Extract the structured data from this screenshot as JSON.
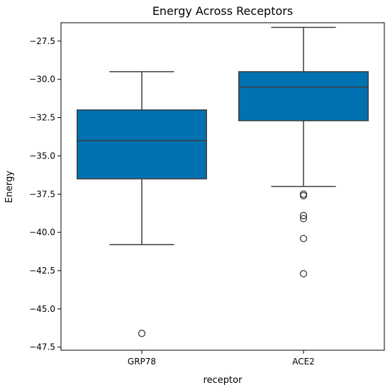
{
  "chart_data": {
    "type": "box",
    "title": "Energy Across Receptors",
    "xlabel": "receptor",
    "ylabel": "Energy",
    "ylim": [
      -47.7,
      -26.3
    ],
    "yticks": [
      -27.5,
      -30.0,
      -32.5,
      -35.0,
      -37.5,
      -40.0,
      -42.5,
      -45.0,
      -47.5
    ],
    "ytick_labels": [
      "−27.5",
      "−30.0",
      "−32.5",
      "−35.0",
      "−37.5",
      "−40.0",
      "−42.5",
      "−45.0",
      "−47.5"
    ],
    "categories": [
      "GRP78",
      "ACE2"
    ],
    "box_color": "#0072b2",
    "boxes": [
      {
        "category": "GRP78",
        "whisker_low": -40.8,
        "q1": -36.5,
        "median": -34.0,
        "q3": -32.0,
        "whisker_high": -29.5,
        "outliers": [
          -46.6
        ]
      },
      {
        "category": "ACE2",
        "whisker_low": -37.0,
        "q1": -32.7,
        "median": -30.5,
        "q3": -29.5,
        "whisker_high": -26.6,
        "outliers": [
          -37.5,
          -37.6,
          -38.9,
          -39.1,
          -40.4,
          -42.7
        ]
      }
    ],
    "grid": false,
    "legend": "none"
  }
}
